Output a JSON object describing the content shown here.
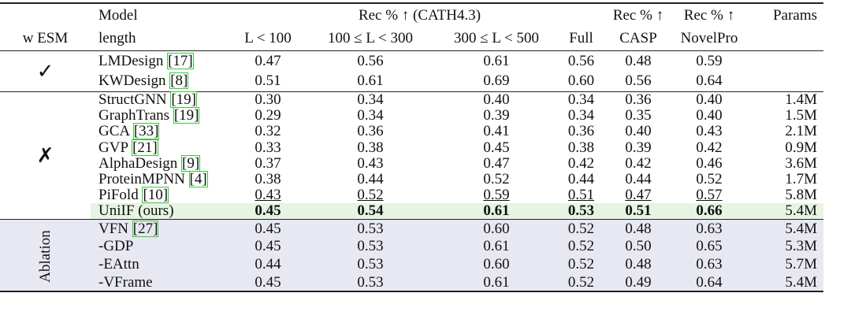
{
  "header": {
    "esm": "w ESM",
    "model": [
      "Model",
      "length"
    ],
    "cath": "Rec % ↑ (CATH4.3)",
    "columns": [
      "L < 100",
      "100 ≤ L < 300",
      "300 ≤ L < 500",
      "Full"
    ],
    "casp": [
      "Rec % ↑",
      "CASP"
    ],
    "novel": [
      "Rec % ↑",
      "NovelPro"
    ],
    "params": "Params"
  },
  "groups": [
    {
      "label": "✓",
      "rows": [
        {
          "model": "LMDesign",
          "cite": "[17]",
          "values": [
            "0.47",
            "0.56",
            "0.61",
            "0.56",
            "0.48",
            "0.59"
          ]
        },
        {
          "model": "KWDesign",
          "cite": "[8]",
          "values": [
            "0.51",
            "0.61",
            "0.69",
            "0.60",
            "0.56",
            "0.64"
          ]
        }
      ]
    },
    {
      "label": "✗",
      "rows": [
        {
          "model": "StructGNN",
          "cite": "[19]",
          "values": [
            "0.30",
            "0.34",
            "0.40",
            "0.34",
            "0.36",
            "0.40"
          ],
          "params": "1.4M"
        },
        {
          "model": "GraphTrans",
          "cite": "[19]",
          "values": [
            "0.29",
            "0.34",
            "0.39",
            "0.34",
            "0.35",
            "0.40"
          ],
          "params": "1.5M"
        },
        {
          "model": "GCA",
          "cite": "[33]",
          "values": [
            "0.32",
            "0.36",
            "0.41",
            "0.36",
            "0.40",
            "0.43"
          ],
          "params": "2.1M"
        },
        {
          "model": "GVP",
          "cite": "[21]",
          "values": [
            "0.33",
            "0.38",
            "0.45",
            "0.38",
            "0.39",
            "0.42"
          ],
          "params": "0.9M"
        },
        {
          "model": "AlphaDesign",
          "cite": "[9]",
          "values": [
            "0.37",
            "0.43",
            "0.47",
            "0.42",
            "0.42",
            "0.46"
          ],
          "params": "3.6M"
        },
        {
          "model": "ProteinMPNN",
          "cite": "[4]",
          "values": [
            "0.38",
            "0.44",
            "0.52",
            "0.44",
            "0.44",
            "0.52"
          ],
          "params": "1.7M"
        },
        {
          "model": "PiFold",
          "cite": "[10]",
          "values": [
            "0.43",
            "0.52",
            "0.59",
            "0.51",
            "0.47",
            "0.57"
          ],
          "params": "5.8M",
          "underline": true
        },
        {
          "model": "UniIF (ours)",
          "values": [
            "0.45",
            "0.54",
            "0.61",
            "0.53",
            "0.51",
            "0.66"
          ],
          "params": "5.4M",
          "bold": true,
          "highlight": "#e6f4e2"
        }
      ]
    },
    {
      "label": "Ablation",
      "vertical": true,
      "background": "#e8e8f3",
      "rows": [
        {
          "model": "VFN",
          "cite": "[27]",
          "values": [
            "0.45",
            "0.53",
            "0.60",
            "0.52",
            "0.48",
            "0.63"
          ],
          "params": "5.4M"
        },
        {
          "model": "-GDP",
          "values": [
            "0.45",
            "0.53",
            "0.61",
            "0.52",
            "0.50",
            "0.65"
          ],
          "params": "5.3M"
        },
        {
          "model": "-EAttn",
          "values": [
            "0.44",
            "0.53",
            "0.60",
            "0.52",
            "0.48",
            "0.63"
          ],
          "params": "5.7M"
        },
        {
          "model": "-VFrame",
          "values": [
            "0.45",
            "0.53",
            "0.61",
            "0.52",
            "0.49",
            "0.64"
          ],
          "params": "5.4M"
        }
      ]
    }
  ]
}
